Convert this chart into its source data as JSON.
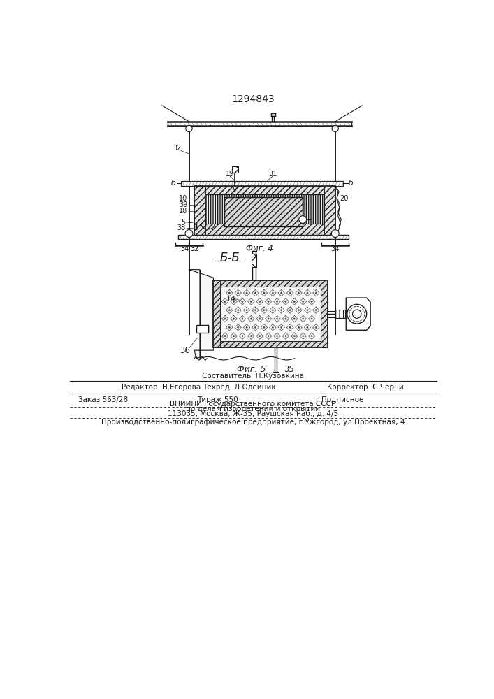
{
  "patent_number": "1294843",
  "fig4_label": "Фиг. 4",
  "fig5_label": "Фиг. 5",
  "section_label": "Б-Б",
  "footer_sestavitel": "Составитель  Н.Кузовкина",
  "footer_editor": "Редактор  Н.Егорова",
  "footer_tekhred": "Техред  Л.Олейник",
  "footer_korrektor": "Корректор  С.Черни",
  "footer_zakaz": "Заказ 563/28",
  "footer_tirazh": "Тираж 550",
  "footer_podpisnoe": "Подписное",
  "footer_vniipи": "ВНИИПИ Государственного комитета СССР",
  "footer_podelam": "по делам изобретений и открытий",
  "footer_addr": "113035, Москва, Ж-35, Раушская наб., д. 4/5",
  "footer_prod": "Производственно-полиграфическое предприятие, г.Ужгород, ул.Проектная, 4",
  "bg_color": "#ffffff",
  "line_color": "#1a1a1a"
}
